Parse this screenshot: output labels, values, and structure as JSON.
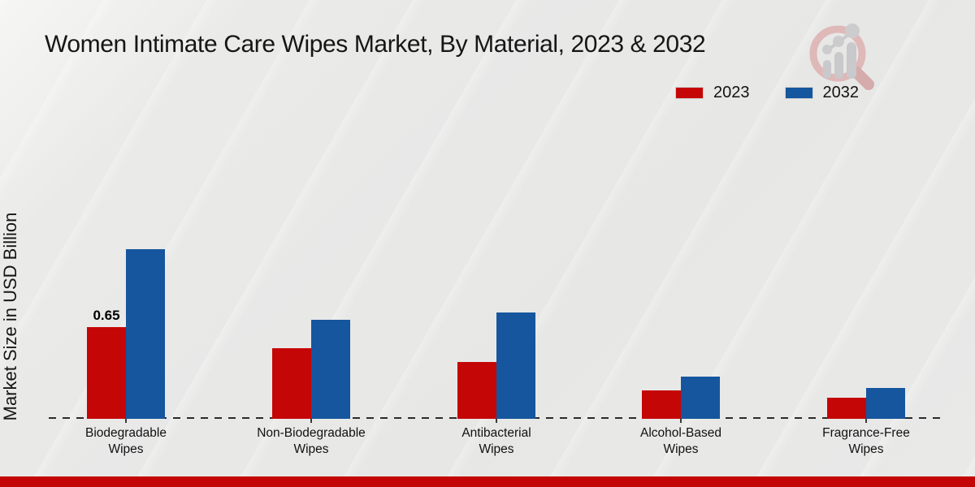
{
  "title": "Women Intimate Care Wipes Market, By Material, 2023 & 2032",
  "ylabel": "Market Size in USD Billion",
  "colors": {
    "series_2023": "#c50606",
    "series_2032": "#15569e",
    "bottom_strip": "#c40505",
    "background": "#e8e8e7",
    "text": "#161616",
    "logo_ring": "#dfb6b6",
    "logo_handle": "#d5a8a8",
    "logo_bars": "#c8c8ca"
  },
  "logo": {
    "icon": "magnifier-growth-chart-logo"
  },
  "chart_data": {
    "type": "bar",
    "title": "Women Intimate Care Wipes Market, By Material, 2023 & 2032",
    "xlabel": "",
    "ylabel": "Market Size in USD Billion",
    "categories": [
      "Biodegradable Wipes",
      "Non-Biodegradable Wipes",
      "Antibacterial Wipes",
      "Alcohol-Based Wipes",
      "Fragrance-Free Wipes"
    ],
    "series": [
      {
        "name": "2023",
        "color": "#c50606",
        "values": [
          0.65,
          0.5,
          0.4,
          0.2,
          0.15
        ]
      },
      {
        "name": "2032",
        "color": "#15569e",
        "values": [
          1.2,
          0.7,
          0.75,
          0.3,
          0.22
        ]
      }
    ],
    "annotations": [
      {
        "series": "2023",
        "category": "Biodegradable Wipes",
        "text": "0.65"
      }
    ],
    "ylim": [
      0,
      1.35
    ],
    "grid": false,
    "y_axis_ticks_visible": false,
    "baseline_style": "dashed",
    "legend_position": "top-right"
  }
}
